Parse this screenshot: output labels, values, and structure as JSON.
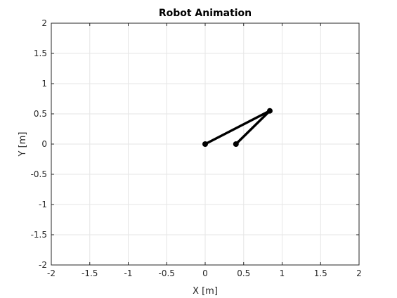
{
  "chart_data": {
    "type": "line",
    "title": "Robot Animation",
    "xlabel": "X [m]",
    "ylabel": "Y [m]",
    "xlim": [
      -2,
      2
    ],
    "ylim": [
      -2,
      2
    ],
    "xticks": [
      -2,
      -1.5,
      -1,
      -0.5,
      0,
      0.5,
      1,
      1.5,
      2
    ],
    "yticks": [
      -2,
      -1.5,
      -1,
      -0.5,
      0,
      0.5,
      1,
      1.5,
      2
    ],
    "xtick_labels": [
      "-2",
      "-1.5",
      "-1",
      "-0.5",
      "0",
      "0.5",
      "1",
      "1.5",
      "2"
    ],
    "ytick_labels": [
      "-2",
      "-1.5",
      "-1",
      "-0.5",
      "0",
      "0.5",
      "1",
      "1.5",
      "2"
    ],
    "grid": true,
    "series": [
      {
        "x": [
          0,
          0.84,
          0.4
        ],
        "y": [
          0,
          0.55,
          0
        ],
        "color": "#000000"
      }
    ]
  }
}
